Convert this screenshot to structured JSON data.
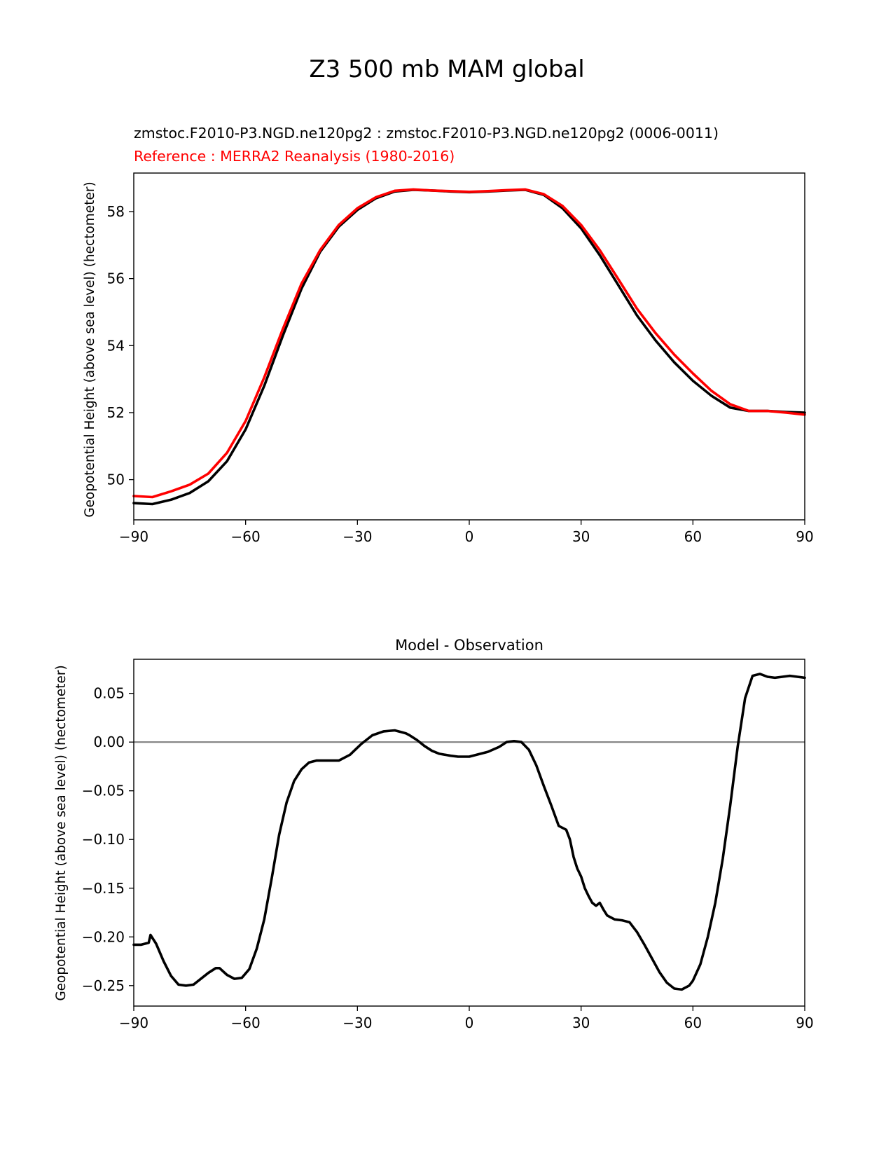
{
  "figure": {
    "title": "Z3 500 mb MAM global"
  },
  "colors": {
    "model": "#000000",
    "reference": "#ff0000",
    "zero_line": "#808080",
    "axes": "#000000"
  },
  "chart_data": [
    {
      "type": "line",
      "title": "zmstoc.F2010-P3.NGD.ne120pg2 : zmstoc.F2010-P3.NGD.ne120pg2 (0006-0011)",
      "subtitle": "Reference : MERRA2 Reanalysis (1980-2016)",
      "xlabel": "",
      "ylabel": "Geopotential Height (above sea level) (hectometer)",
      "xlim": [
        -90,
        90
      ],
      "ylim": [
        48.8,
        59.15
      ],
      "xticks": [
        -90,
        -60,
        -30,
        0,
        30,
        60,
        90
      ],
      "xtick_labels": [
        "−90",
        "−60",
        "−30",
        "0",
        "30",
        "60",
        "90"
      ],
      "yticks": [
        50,
        52,
        54,
        56,
        58
      ],
      "ytick_labels": [
        "50",
        "52",
        "54",
        "56",
        "58"
      ],
      "grid": false,
      "series": [
        {
          "name": "zmstoc.F2010-P3.NGD.ne120pg2",
          "color": "#000000",
          "x": [
            -90,
            -85,
            -80,
            -75,
            -70,
            -65,
            -60,
            -55,
            -50,
            -45,
            -40,
            -35,
            -30,
            -25,
            -20,
            -15,
            -10,
            -5,
            0,
            5,
            10,
            15,
            20,
            25,
            30,
            35,
            40,
            45,
            50,
            55,
            60,
            65,
            70,
            75,
            80,
            85,
            90
          ],
          "values": [
            49.3,
            49.27,
            49.4,
            49.6,
            49.95,
            50.55,
            51.5,
            52.8,
            54.3,
            55.7,
            56.8,
            57.55,
            58.05,
            58.4,
            58.6,
            58.65,
            58.63,
            58.6,
            58.58,
            58.6,
            58.63,
            58.65,
            58.5,
            58.1,
            57.5,
            56.7,
            55.8,
            54.9,
            54.15,
            53.5,
            52.95,
            52.5,
            52.15,
            52.05,
            52.05,
            52.02,
            52.0
          ]
        },
        {
          "name": "MERRA2 Reanalysis",
          "color": "#ff0000",
          "x": [
            -90,
            -85,
            -80,
            -75,
            -70,
            -65,
            -60,
            -55,
            -50,
            -45,
            -40,
            -35,
            -30,
            -25,
            -20,
            -15,
            -10,
            -5,
            0,
            5,
            10,
            15,
            20,
            25,
            30,
            35,
            40,
            45,
            50,
            55,
            60,
            65,
            70,
            75,
            80,
            85,
            90
          ],
          "values": [
            49.51,
            49.48,
            49.65,
            49.85,
            50.18,
            50.8,
            51.75,
            53.05,
            54.5,
            55.85,
            56.85,
            57.6,
            58.1,
            58.43,
            58.62,
            58.66,
            58.63,
            58.61,
            58.59,
            58.61,
            58.64,
            58.66,
            58.52,
            58.17,
            57.6,
            56.85,
            55.98,
            55.1,
            54.37,
            53.73,
            53.17,
            52.65,
            52.25,
            52.05,
            52.05,
            52.0,
            51.94
          ]
        }
      ]
    },
    {
      "type": "line",
      "title": "Model - Observation",
      "xlabel": "",
      "ylabel": "Geopotential Height (above sea level) (hectometer)",
      "xlim": [
        -90,
        90
      ],
      "ylim": [
        -0.271,
        0.085
      ],
      "xticks": [
        -90,
        -60,
        -30,
        0,
        30,
        60,
        90
      ],
      "xtick_labels": [
        "−90",
        "−60",
        "−30",
        "0",
        "30",
        "60",
        "90"
      ],
      "yticks": [
        0.05,
        0.0,
        -0.05,
        -0.1,
        -0.15,
        -0.2,
        -0.25
      ],
      "ytick_labels": [
        "0.05",
        "0.00",
        "−0.05",
        "−0.10",
        "−0.15",
        "−0.20",
        "−0.25"
      ],
      "grid": false,
      "reference_line": {
        "y": 0.0,
        "color": "#808080"
      },
      "series": [
        {
          "name": "Model - Observation",
          "color": "#000000",
          "x": [
            -90,
            -88,
            -86,
            -85.5,
            -84,
            -82,
            -80,
            -78,
            -76,
            -74,
            -72,
            -70,
            -68,
            -67,
            -65,
            -63,
            -61,
            -59,
            -57,
            -55,
            -53,
            -51,
            -49,
            -47,
            -45,
            -43,
            -41,
            -38,
            -35,
            -32,
            -29,
            -26,
            -23,
            -20,
            -18,
            -17,
            -16,
            -14,
            -12,
            -10,
            -8,
            -5,
            -3,
            0,
            2,
            5,
            8,
            10,
            12,
            14,
            16,
            18,
            20,
            22,
            24,
            26,
            27,
            28,
            29,
            30,
            31,
            32,
            33,
            34,
            35,
            36,
            37,
            38,
            39,
            41,
            43,
            44,
            45,
            47,
            49,
            51,
            53,
            55,
            57,
            59,
            60,
            62,
            64,
            66,
            68,
            70,
            72,
            74,
            76,
            78,
            80,
            82,
            84,
            86,
            88,
            90
          ],
          "values": [
            -0.208,
            -0.208,
            -0.206,
            -0.198,
            -0.207,
            -0.225,
            -0.24,
            -0.249,
            -0.25,
            -0.249,
            -0.243,
            -0.237,
            -0.232,
            -0.232,
            -0.239,
            -0.243,
            -0.242,
            -0.233,
            -0.212,
            -0.182,
            -0.14,
            -0.095,
            -0.062,
            -0.04,
            -0.028,
            -0.021,
            -0.019,
            -0.019,
            -0.019,
            -0.013,
            -0.002,
            0.007,
            0.011,
            0.012,
            0.01,
            0.009,
            0.007,
            0.002,
            -0.004,
            -0.009,
            -0.012,
            -0.014,
            -0.015,
            -0.015,
            -0.013,
            -0.01,
            -0.005,
            0.0,
            0.001,
            0.0,
            -0.008,
            -0.024,
            -0.045,
            -0.065,
            -0.086,
            -0.09,
            -0.1,
            -0.118,
            -0.13,
            -0.138,
            -0.15,
            -0.158,
            -0.165,
            -0.168,
            -0.165,
            -0.172,
            -0.178,
            -0.18,
            -0.182,
            -0.183,
            -0.185,
            -0.19,
            -0.195,
            -0.208,
            -0.222,
            -0.236,
            -0.247,
            -0.253,
            -0.254,
            -0.25,
            -0.245,
            -0.228,
            -0.2,
            -0.165,
            -0.12,
            -0.065,
            -0.005,
            0.045,
            0.068,
            0.07,
            0.067,
            0.066,
            0.067,
            0.068,
            0.067,
            0.066
          ]
        }
      ]
    }
  ]
}
